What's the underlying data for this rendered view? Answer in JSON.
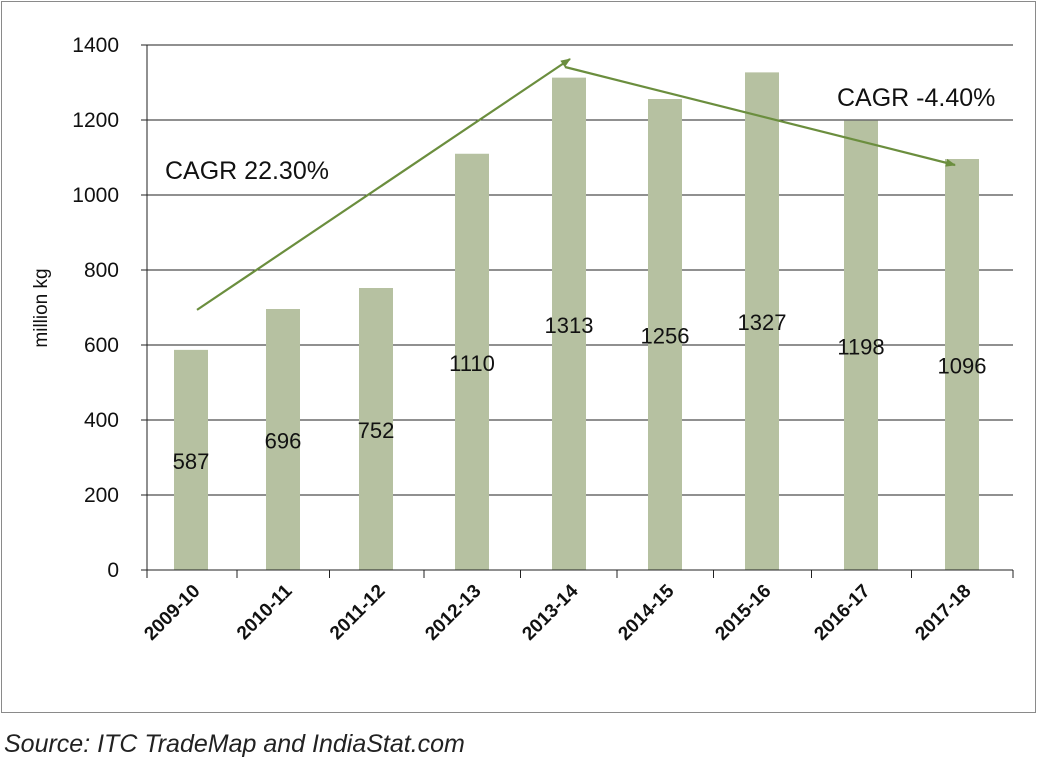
{
  "chart_data": {
    "type": "bar",
    "categories": [
      "2009-10",
      "2010-11",
      "2011-12",
      "2012-13",
      "2013-14",
      "2014-15",
      "2015-16",
      "2016-17",
      "2017-18"
    ],
    "values": [
      587,
      696,
      752,
      1110,
      1313,
      1256,
      1327,
      1198,
      1096
    ],
    "title": "",
    "xlabel": "",
    "ylabel": "million kg",
    "ylim": [
      0,
      1400
    ],
    "yticks": [
      0,
      200,
      400,
      600,
      800,
      1000,
      1200,
      1400
    ],
    "grid": true,
    "bar_color": "#b6c1a1",
    "arrow_color": "#6b8e3e",
    "annotations": [
      {
        "text": "CAGR 22.30%",
        "from_category": "2009-10",
        "to_category": "2013-14"
      },
      {
        "text": "CAGR -4.40%",
        "from_category": "2013-14",
        "to_category": "2017-18"
      }
    ]
  },
  "source": "Source: ITC TradeMap and IndiaStat.com"
}
